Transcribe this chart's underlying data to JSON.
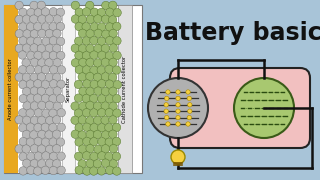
{
  "bg_color": "#a8c4d8",
  "title": "Battery basics",
  "title_color": "#111111",
  "title_fontsize": 17,
  "title_fontweight": "bold",
  "left_panel_bg": "#ffffff",
  "left_panel_border": "#555555",
  "anode_collector_color": "#e8a820",
  "anode_ball_color": "#b8b8b8",
  "cathode_ball_color": "#9ab86e",
  "cathode_collector_color": "#cccccc",
  "label_anode": "Anode current collector",
  "label_separator": "Separator",
  "label_cathode": "Cathode current collector",
  "right_panel_bg": "#f2c0c0",
  "right_panel_border": "#222222",
  "wire_color": "#111111",
  "bulb_color": "#f5d040",
  "anode_circle_color": "#b0b0b0",
  "cathode_circle_color": "#a8c870"
}
